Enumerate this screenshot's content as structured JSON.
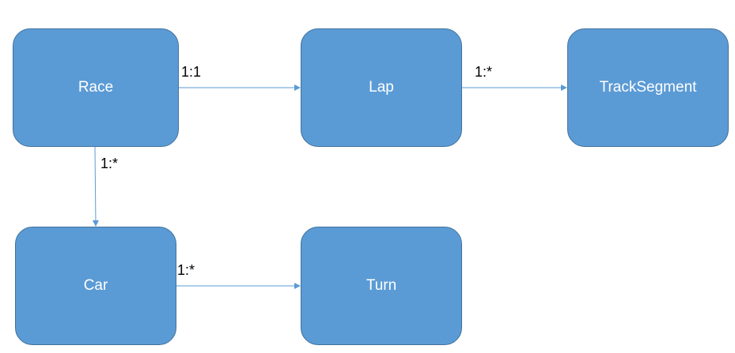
{
  "colors": {
    "entity_fill": "#5b9bd5",
    "entity_border": "#41719c",
    "connector": "#5b9bd5",
    "label_text": "#000000"
  },
  "entities": {
    "race": "Race",
    "lap": "Lap",
    "track_segment": "TrackSegment",
    "car": "Car",
    "turn": "Turn"
  },
  "relationships": {
    "race_lap": "1:1",
    "lap_track_segment": "1:*",
    "race_car": "1:*",
    "car_turn": "1:*"
  }
}
